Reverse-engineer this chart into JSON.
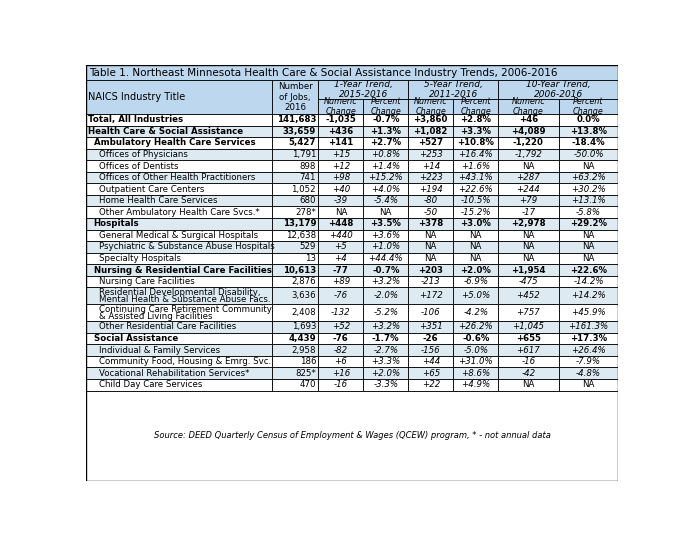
{
  "title": "Table 1. Northeast Minnesota Health Care & Social Assistance Industry Trends, 2006-2016",
  "rows": [
    {
      "label": "Total, All Industries",
      "jobs": "141,683",
      "n1": "-1,035",
      "p1": "-0.7%",
      "n5": "+3,860",
      "p5": "+2.8%",
      "n10": "+46",
      "p10": "0.0%",
      "bold": true,
      "indent": 0,
      "bg": "white",
      "double_line": false
    },
    {
      "label": "Health Care & Social Assistance",
      "jobs": "33,659",
      "n1": "+436",
      "p1": "+1.3%",
      "n5": "+1,082",
      "p5": "+3.3%",
      "n10": "+4,089",
      "p10": "+13.8%",
      "bold": true,
      "indent": 0,
      "bg": "blue",
      "double_line": false
    },
    {
      "label": "Ambulatory Health Care Services",
      "jobs": "5,427",
      "n1": "+141",
      "p1": "+2.7%",
      "n5": "+527",
      "p5": "+10.8%",
      "n10": "-1,220",
      "p10": "-18.4%",
      "bold": true,
      "indent": 1,
      "bg": "white",
      "double_line": false
    },
    {
      "label": "Offices of Physicians",
      "jobs": "1,791",
      "n1": "+15",
      "p1": "+0.8%",
      "n5": "+253",
      "p5": "+16.4%",
      "n10": "-1,792",
      "p10": "-50.0%",
      "bold": false,
      "indent": 2,
      "bg": "blue",
      "double_line": false
    },
    {
      "label": "Offices of Dentists",
      "jobs": "898",
      "n1": "+12",
      "p1": "+1.4%",
      "n5": "+14",
      "p5": "+1.6%",
      "n10": "NA",
      "p10": "NA",
      "bold": false,
      "indent": 2,
      "bg": "white",
      "double_line": false
    },
    {
      "label": "Offices of Other Health Practitioners",
      "jobs": "741",
      "n1": "+98",
      "p1": "+15.2%",
      "n5": "+223",
      "p5": "+43.1%",
      "n10": "+287",
      "p10": "+63.2%",
      "bold": false,
      "indent": 2,
      "bg": "blue",
      "double_line": false
    },
    {
      "label": "Outpatient Care Centers",
      "jobs": "1,052",
      "n1": "+40",
      "p1": "+4.0%",
      "n5": "+194",
      "p5": "+22.6%",
      "n10": "+244",
      "p10": "+30.2%",
      "bold": false,
      "indent": 2,
      "bg": "white",
      "double_line": false
    },
    {
      "label": "Home Health Care Services",
      "jobs": "680",
      "n1": "-39",
      "p1": "-5.4%",
      "n5": "-80",
      "p5": "-10.5%",
      "n10": "+79",
      "p10": "+13.1%",
      "bold": false,
      "indent": 2,
      "bg": "blue",
      "double_line": false
    },
    {
      "label": "Other Ambulatory Health Care Svcs.*",
      "jobs": "278*",
      "n1": "NA",
      "p1": "NA",
      "n5": "-50",
      "p5": "-15.2%",
      "n10": "-17",
      "p10": "-5.8%",
      "bold": false,
      "indent": 2,
      "bg": "white",
      "double_line": false
    },
    {
      "label": "Hospitals",
      "jobs": "13,179",
      "n1": "+448",
      "p1": "+3.5%",
      "n5": "+378",
      "p5": "+3.0%",
      "n10": "+2,978",
      "p10": "+29.2%",
      "bold": true,
      "indent": 1,
      "bg": "blue",
      "double_line": false
    },
    {
      "label": "General Medical & Surgical Hospitals",
      "jobs": "12,638",
      "n1": "+440",
      "p1": "+3.6%",
      "n5": "NA",
      "p5": "NA",
      "n10": "NA",
      "p10": "NA",
      "bold": false,
      "indent": 2,
      "bg": "white",
      "double_line": false
    },
    {
      "label": "Psychiatric & Substance Abuse Hospitals",
      "jobs": "529",
      "n1": "+5",
      "p1": "+1.0%",
      "n5": "NA",
      "p5": "NA",
      "n10": "NA",
      "p10": "NA",
      "bold": false,
      "indent": 2,
      "bg": "blue",
      "double_line": false
    },
    {
      "label": "Specialty Hospitals",
      "jobs": "13",
      "n1": "+4",
      "p1": "+44.4%",
      "n5": "NA",
      "p5": "NA",
      "n10": "NA",
      "p10": "NA",
      "bold": false,
      "indent": 2,
      "bg": "white",
      "double_line": false
    },
    {
      "label": "Nursing & Residential Care Facilities",
      "jobs": "10,613",
      "n1": "-77",
      "p1": "-0.7%",
      "n5": "+203",
      "p5": "+2.0%",
      "n10": "+1,954",
      "p10": "+22.6%",
      "bold": true,
      "indent": 1,
      "bg": "blue",
      "double_line": false
    },
    {
      "label": "Nursing Care Facilities",
      "jobs": "2,876",
      "n1": "+89",
      "p1": "+3.2%",
      "n5": "-213",
      "p5": "-6.9%",
      "n10": "-475",
      "p10": "-14.2%",
      "bold": false,
      "indent": 2,
      "bg": "white",
      "double_line": false
    },
    {
      "label": "Residential Developmental Disability,",
      "jobs": "3,636",
      "n1": "-76",
      "p1": "-2.0%",
      "n5": "+172",
      "p5": "+5.0%",
      "n10": "+452",
      "p10": "+14.2%",
      "bold": false,
      "indent": 2,
      "bg": "blue",
      "double_line": true,
      "label2": "Mental Health & Substance Abuse Facs."
    },
    {
      "label": "Continuing Care Retirement Community",
      "jobs": "2,408",
      "n1": "-132",
      "p1": "-5.2%",
      "n5": "-106",
      "p5": "-4.2%",
      "n10": "+757",
      "p10": "+45.9%",
      "bold": false,
      "indent": 2,
      "bg": "white",
      "double_line": true,
      "label2": "& Assisted Living Facilities"
    },
    {
      "label": "Other Residential Care Facilities",
      "jobs": "1,693",
      "n1": "+52",
      "p1": "+3.2%",
      "n5": "+351",
      "p5": "+26.2%",
      "n10": "+1,045",
      "p10": "+161.3%",
      "bold": false,
      "indent": 2,
      "bg": "blue",
      "double_line": false
    },
    {
      "label": "Social Assistance",
      "jobs": "4,439",
      "n1": "-76",
      "p1": "-1.7%",
      "n5": "-26",
      "p5": "-0.6%",
      "n10": "+655",
      "p10": "+17.3%",
      "bold": true,
      "indent": 1,
      "bg": "white",
      "double_line": false
    },
    {
      "label": "Individual & Family Services",
      "jobs": "2,958",
      "n1": "-82",
      "p1": "-2.7%",
      "n5": "-156",
      "p5": "-5.0%",
      "n10": "+617",
      "p10": "+26.4%",
      "bold": false,
      "indent": 2,
      "bg": "blue",
      "double_line": false
    },
    {
      "label": "Community Food, Housing & Emrg. Svc.",
      "jobs": "186",
      "n1": "+6",
      "p1": "+3.3%",
      "n5": "+44",
      "p5": "+31.0%",
      "n10": "-16",
      "p10": "-7.9%",
      "bold": false,
      "indent": 2,
      "bg": "white",
      "double_line": false
    },
    {
      "label": "Vocational Rehabilitation Services*",
      "jobs": "825*",
      "n1": "+16",
      "p1": "+2.0%",
      "n5": "+65",
      "p5": "+8.6%",
      "n10": "-42",
      "p10": "-4.8%",
      "bold": false,
      "indent": 2,
      "bg": "blue",
      "double_line": false
    },
    {
      "label": "Child Day Care Services",
      "jobs": "470",
      "n1": "-16",
      "p1": "-3.3%",
      "n5": "+22",
      "p5": "+4.9%",
      "n10": "NA",
      "p10": "NA",
      "bold": false,
      "indent": 2,
      "bg": "white",
      "double_line": false
    }
  ],
  "bg_header": "#BDD7EE",
  "bg_blue": "#DEEAF1",
  "bg_white": "#FFFFFF"
}
